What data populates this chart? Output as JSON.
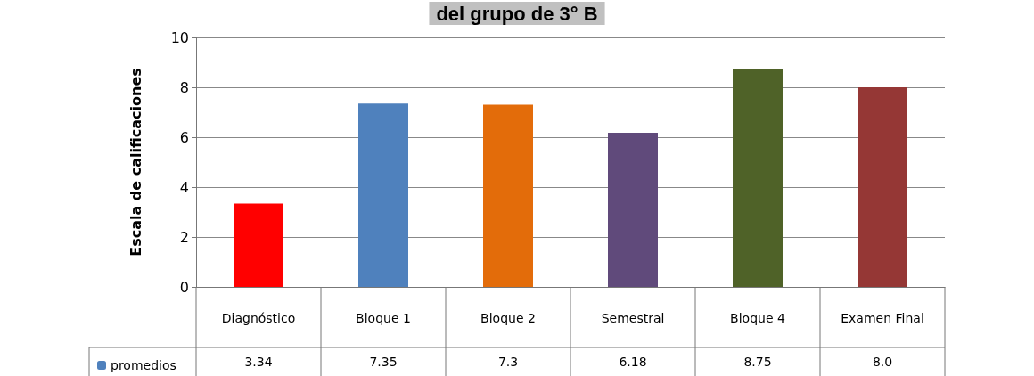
{
  "chart_data": {
    "type": "bar",
    "title": "del grupo de 3° B",
    "ylabel": "Escala de calificaciones",
    "categories": [
      "Diagnóstico",
      "Bloque 1",
      "Bloque 2",
      "Semestral",
      "Bloque 4",
      "Examen Final"
    ],
    "series": [
      {
        "name": "promedios",
        "color": "#4f81bd",
        "colors": [
          "#ff0000",
          "#4f81bd",
          "#e36c0a",
          "#604a7b",
          "#4f6228",
          "#953735"
        ],
        "values": [
          3.34,
          7.35,
          7.3,
          6.18,
          8.75,
          8.0
        ],
        "value_labels": [
          "3.34",
          "7.35",
          "7.3",
          "6.18",
          "8.75",
          "8.0"
        ]
      }
    ],
    "ylim": [
      0,
      10
    ],
    "yticks": [
      0,
      2,
      4,
      6,
      8,
      10
    ],
    "grid": "y",
    "legend": "bottom left"
  }
}
